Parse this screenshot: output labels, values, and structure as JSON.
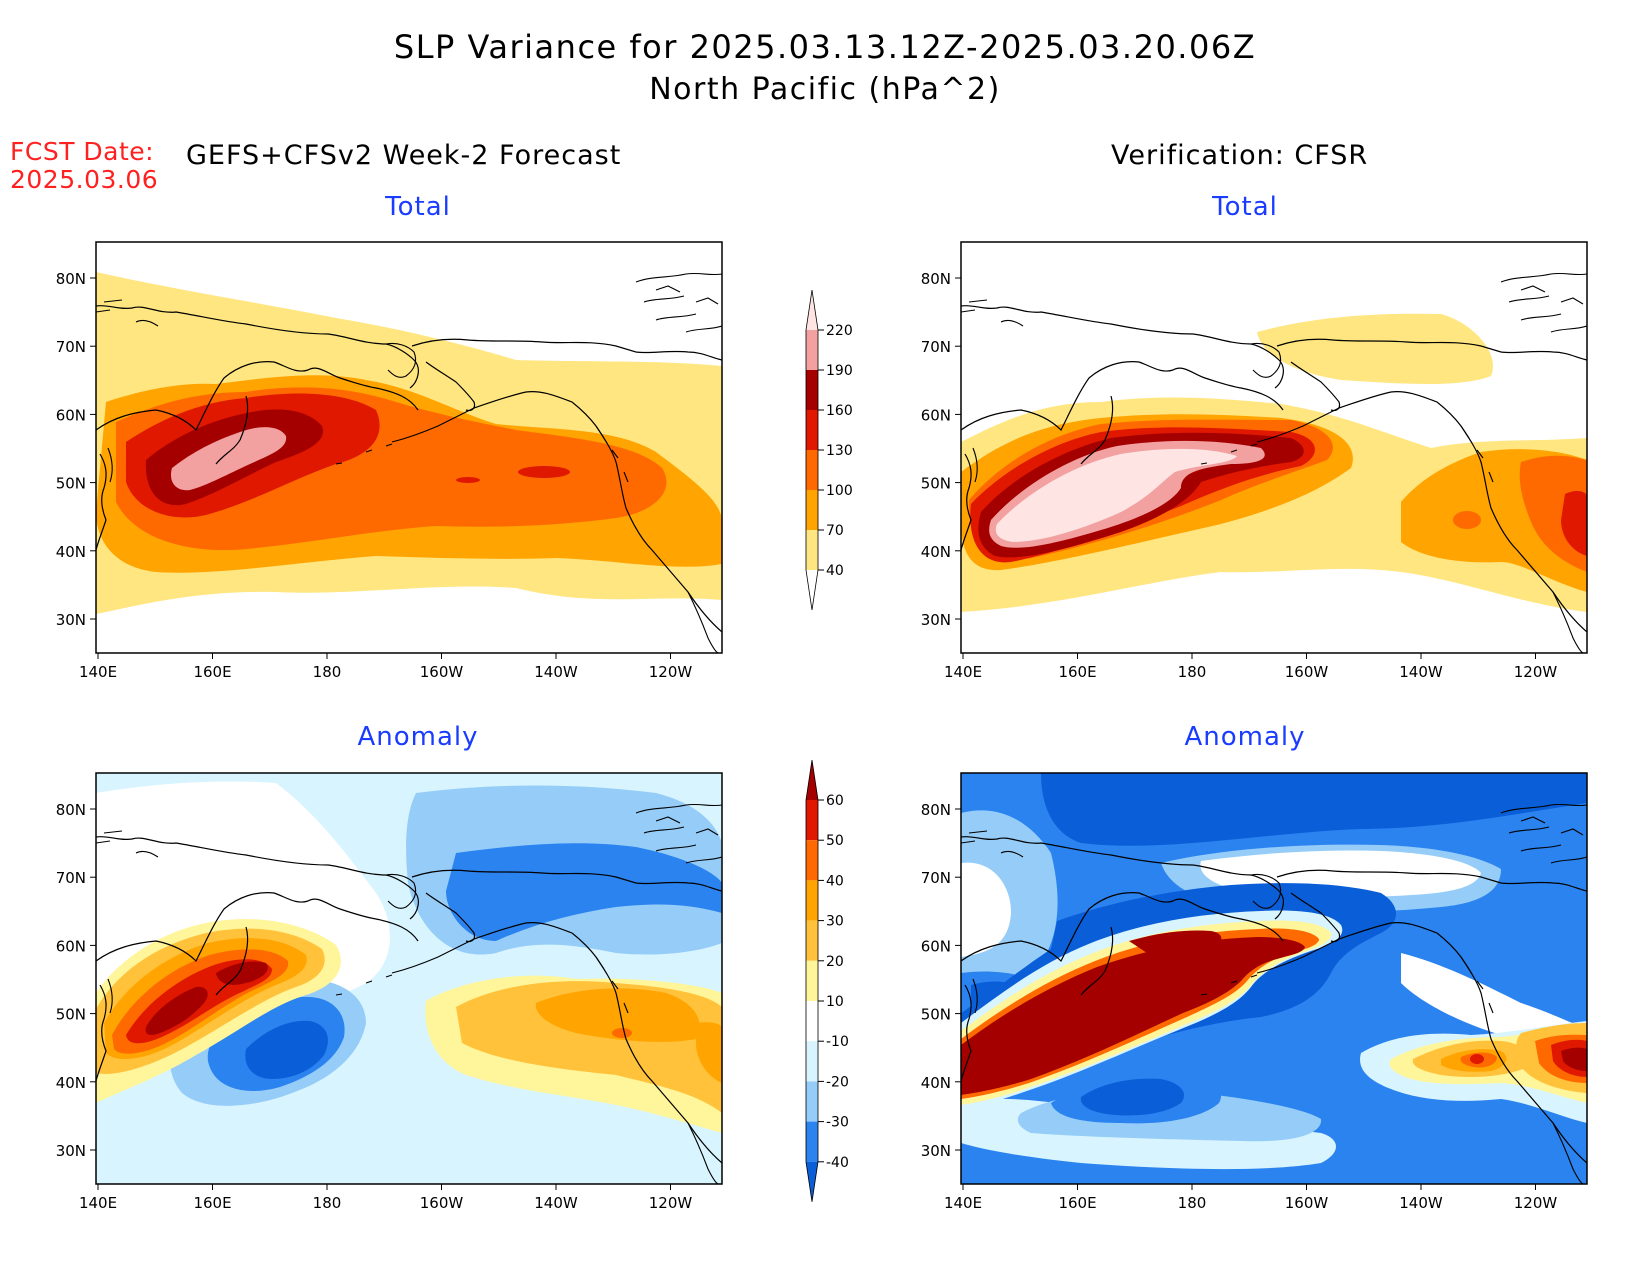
{
  "header": {
    "title_line1": "SLP Variance for 2025.03.13.12Z-2025.03.20.06Z",
    "title_line2": "North Pacific (hPa^2)",
    "fcst_label": "FCST Date:",
    "fcst_date": "2025.03.06",
    "left_heading": "GEFS+CFSv2 Week-2 Forecast",
    "right_heading": "Verification: CFSR"
  },
  "panels": {
    "top_left_title": "Total",
    "top_right_title": "Total",
    "bottom_left_title": "Anomaly",
    "bottom_right_title": "Anomaly"
  },
  "axes": {
    "lon_ticks": [
      "140E",
      "160E",
      "180",
      "160W",
      "140W",
      "120W"
    ],
    "lat_ticks": [
      "30N",
      "40N",
      "50N",
      "60N",
      "70N",
      "80N"
    ]
  },
  "colorbars": {
    "total": {
      "levels": [
        "40",
        "70",
        "100",
        "130",
        "160",
        "190",
        "220"
      ],
      "colors": [
        "#ffe680",
        "#ffa400",
        "#ff6a00",
        "#e01800",
        "#a50000",
        "#f2a0a0",
        "#ffe4e4"
      ]
    },
    "anomaly": {
      "levels": [
        "-40",
        "-30",
        "-20",
        "-10",
        "10",
        "20",
        "30",
        "40",
        "50",
        "60"
      ],
      "colors": [
        "#0a5fd8",
        "#2b83f0",
        "#96cdf8",
        "#d8f4ff",
        "#ffffff",
        "#fff59a",
        "#ffc23a",
        "#ffa400",
        "#ff6a00",
        "#e01800",
        "#a50000"
      ]
    }
  }
}
